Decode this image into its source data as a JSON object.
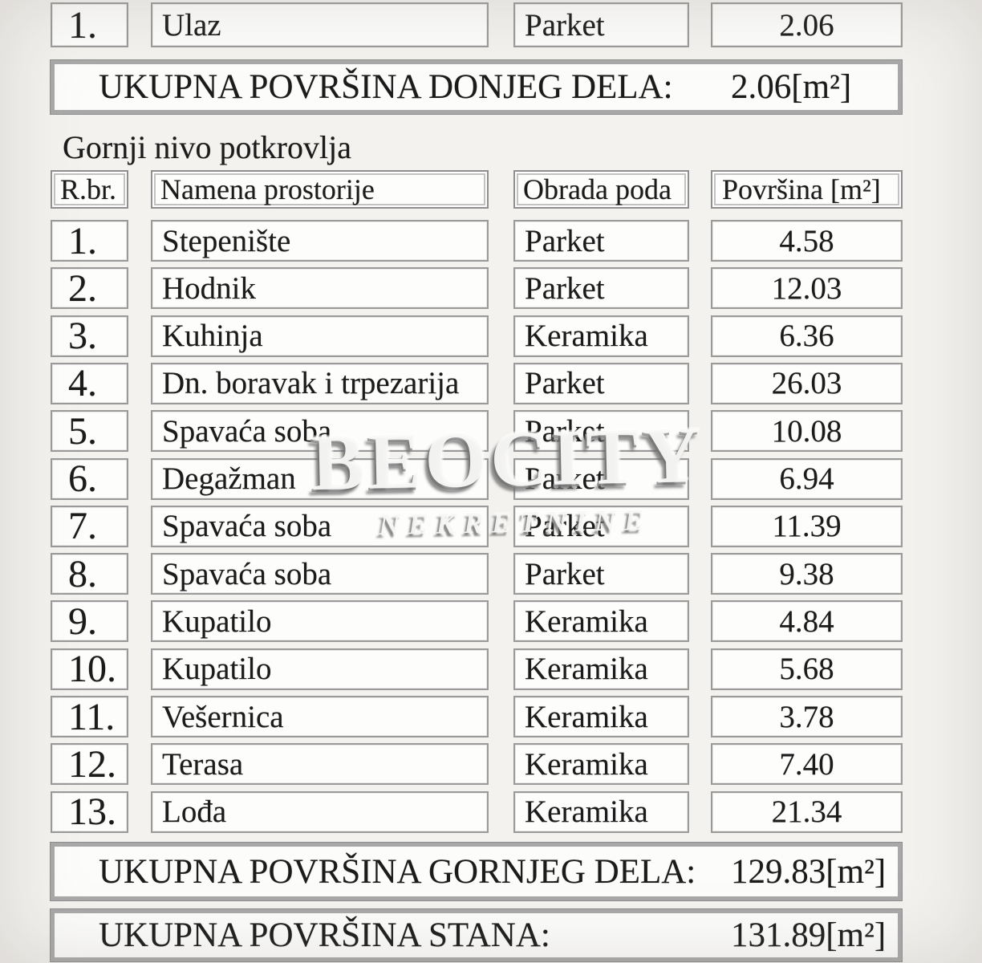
{
  "colors": {
    "page_background": "#f3f2ef",
    "cell_background": "#fdfdfc",
    "border_gray": "#9a9a9a",
    "text": "#1b1b1b"
  },
  "lower_table": {
    "rows": [
      {
        "num": "1.",
        "name": "Ulaz",
        "floor": "Parket",
        "area": "2.06"
      }
    ],
    "total_label": "UKUPNA POVRŠINA DONJEG DELA:",
    "total_value": "2.06[m²]"
  },
  "section_title": "Gornji nivo potkrovlja",
  "upper_table": {
    "headers": {
      "num": "R.br.",
      "name": "Namena prostorije",
      "floor": "Obrada poda",
      "area": "Površina [m²]"
    },
    "rows": [
      {
        "num": "1.",
        "name": "Stepenište",
        "floor": "Parket",
        "area": "4.58"
      },
      {
        "num": "2.",
        "name": "Hodnik",
        "floor": "Parket",
        "area": "12.03"
      },
      {
        "num": "3.",
        "name": "Kuhinja",
        "floor": "Keramika",
        "area": "6.36"
      },
      {
        "num": "4.",
        "name": "Dn. boravak i trpezarija",
        "floor": "Parket",
        "area": "26.03"
      },
      {
        "num": "5.",
        "name": "Spavaća soba",
        "floor": "Parket",
        "area": "10.08"
      },
      {
        "num": "6.",
        "name": "Degažman",
        "floor": "Parket",
        "area": "6.94"
      },
      {
        "num": "7.",
        "name": "Spavaća soba",
        "floor": "Parket",
        "area": "11.39"
      },
      {
        "num": "8.",
        "name": "Spavaća soba",
        "floor": "Parket",
        "area": "9.38"
      },
      {
        "num": "9.",
        "name": "Kupatilo",
        "floor": "Keramika",
        "area": "4.84"
      },
      {
        "num": "10.",
        "name": "Kupatilo",
        "floor": "Keramika",
        "area": "5.68"
      },
      {
        "num": "11.",
        "name": "Vešernica",
        "floor": "Keramika",
        "area": "3.78"
      },
      {
        "num": "12.",
        "name": "Terasa",
        "floor": "Keramika",
        "area": "7.40"
      },
      {
        "num": "13.",
        "name": "Lođa",
        "floor": "Keramika",
        "area": "21.34"
      }
    ],
    "total_label": "UKUPNA POVRŠINA GORNJEG DELA:",
    "total_value": "129.83[m²]"
  },
  "grand_total": {
    "label": "UKUPNA POVRŠINA STANA:",
    "value": "131.89[m²]"
  },
  "watermark": {
    "line1": "BEOCITY",
    "line2": "NEKRETNINE"
  }
}
